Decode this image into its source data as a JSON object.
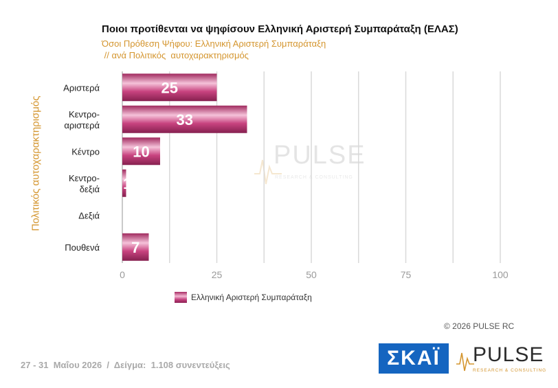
{
  "header": {
    "title": "Ποιοι προτίθενται να ψηφίσουν Ελληνική Αριστερή Συμπαράταξη (ΕΛΑΣ)",
    "subtitle": "Όσοι Πρόθεση Ψήφου: Ελληνική Αριστερή Συμπαράταξη\n // ανά Πολιτικός  αυτοχαρακτηρισμός"
  },
  "chart_data": {
    "type": "bar",
    "orientation": "horizontal",
    "categories": [
      "Αριστερά",
      "Κεντρο-\nαριστερά",
      "Κέντρο",
      "Κεντρο-\nδεξιά",
      "Δεξιά",
      "Πουθενά"
    ],
    "series": [
      {
        "name": "Ελληνική Αριστερή Συμπαράταξη",
        "values": [
          25,
          33,
          10,
          1,
          0,
          7
        ],
        "labels": [
          "25",
          "33",
          "10",
          "1",
          "",
          "7"
        ]
      }
    ],
    "xlim": [
      0,
      100
    ],
    "xticks": [
      "0",
      "25",
      "50",
      "75",
      "100"
    ],
    "ylabel": "Πολιτικός  αυτοχαρακτηρισμός",
    "grid": true,
    "legend_position": "bottom",
    "bar_color": "#c3417e"
  },
  "footer": {
    "copyright": "©  2026  PULSE RC",
    "fieldwork": "27 - 31  Μαΐου 2026  /  Δείγμα:  1.108 συνεντεύξεις"
  },
  "logos": {
    "skai": "ΣΚΑΪ",
    "pulse": "PULSE",
    "pulse_sub": "RESEARCH & CONSULTING"
  }
}
